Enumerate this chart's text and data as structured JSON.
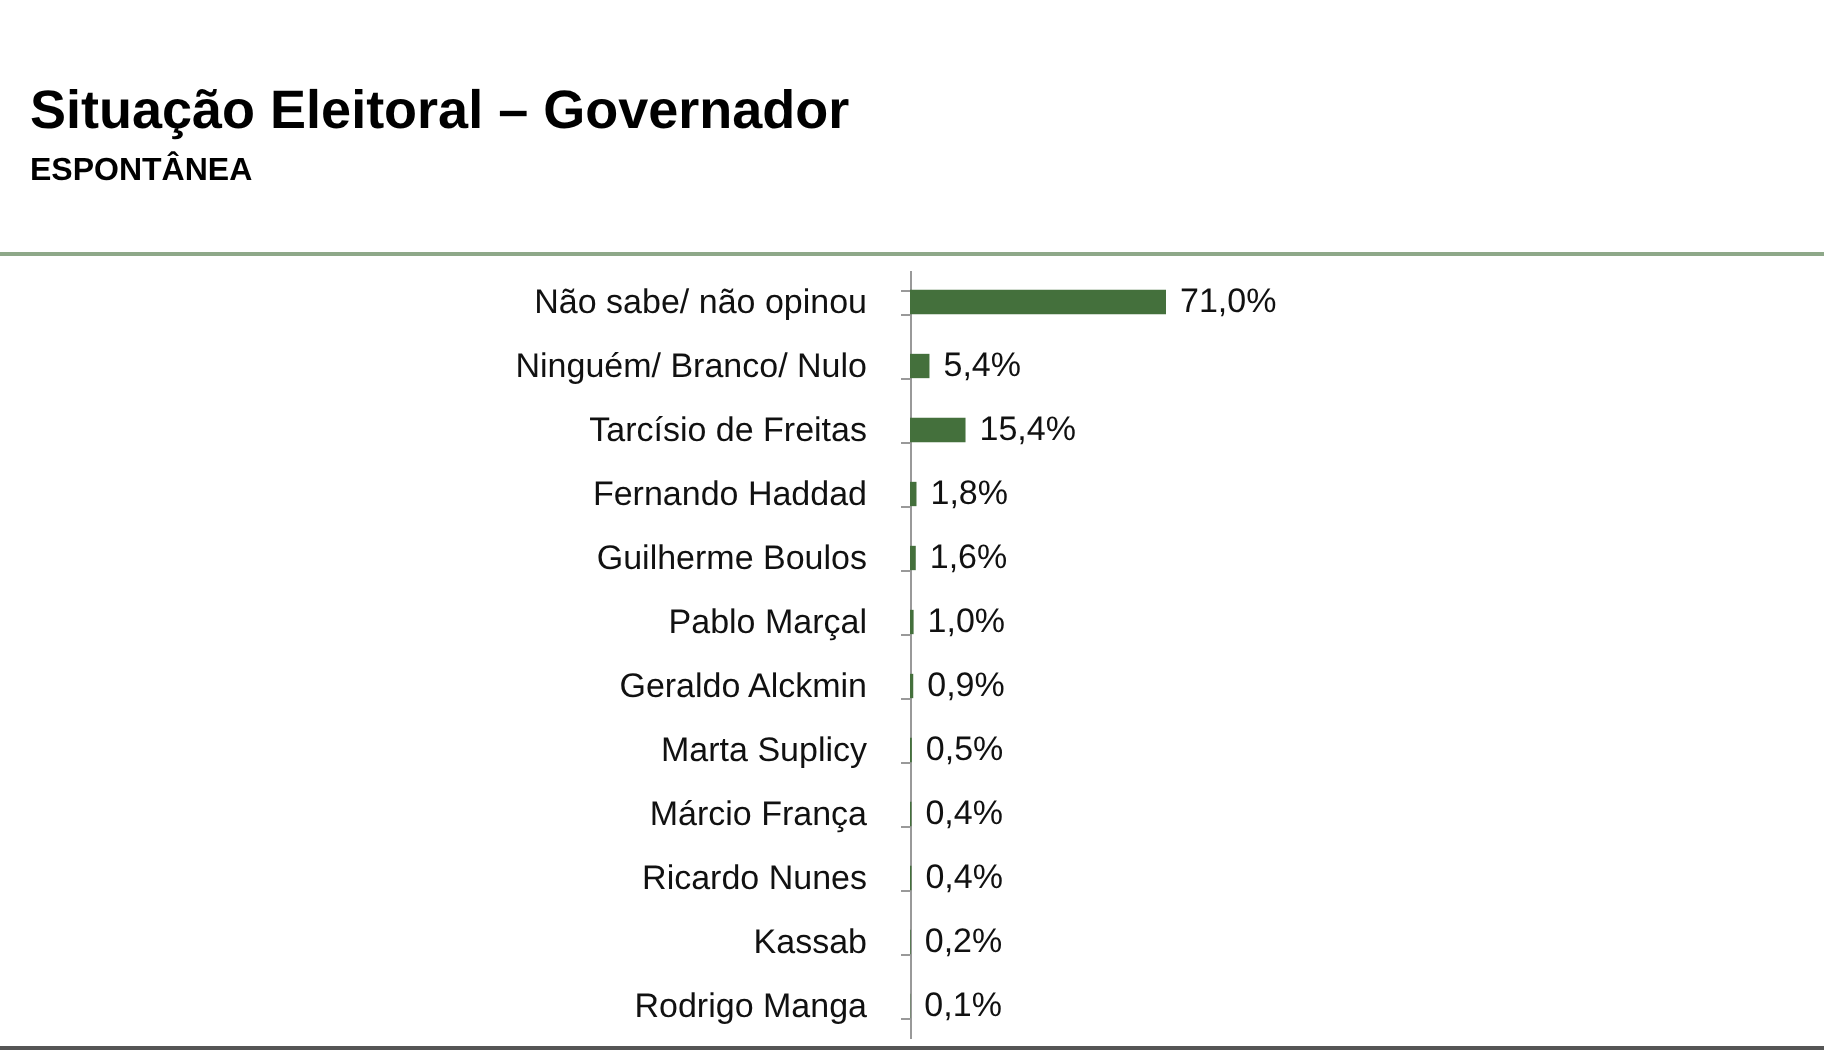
{
  "chart_data": {
    "type": "bar",
    "orientation": "horizontal",
    "title": "Situação Eleitoral – Governador",
    "subtitle": "ESPONTÂNEA",
    "categories": [
      "Não sabe/ não opinou",
      "Ninguém/ Branco/ Nulo",
      "Tarcísio de Freitas",
      "Fernando Haddad",
      "Guilherme Boulos",
      "Pablo Marçal",
      "Geraldo Alckmin",
      "Marta Suplicy",
      "Márcio França",
      "Ricardo Nunes",
      "Kassab",
      "Rodrigo Manga"
    ],
    "values": [
      71.0,
      5.4,
      15.4,
      1.8,
      1.6,
      1.0,
      0.9,
      0.5,
      0.4,
      0.4,
      0.2,
      0.1
    ],
    "value_labels": [
      "71,0%",
      "5,4%",
      "15,4%",
      "1,8%",
      "1,6%",
      "1,0%",
      "0,9%",
      "0,5%",
      "0,4%",
      "0,4%",
      "0,2%",
      "0,1%"
    ],
    "color": "#44703c"
  }
}
